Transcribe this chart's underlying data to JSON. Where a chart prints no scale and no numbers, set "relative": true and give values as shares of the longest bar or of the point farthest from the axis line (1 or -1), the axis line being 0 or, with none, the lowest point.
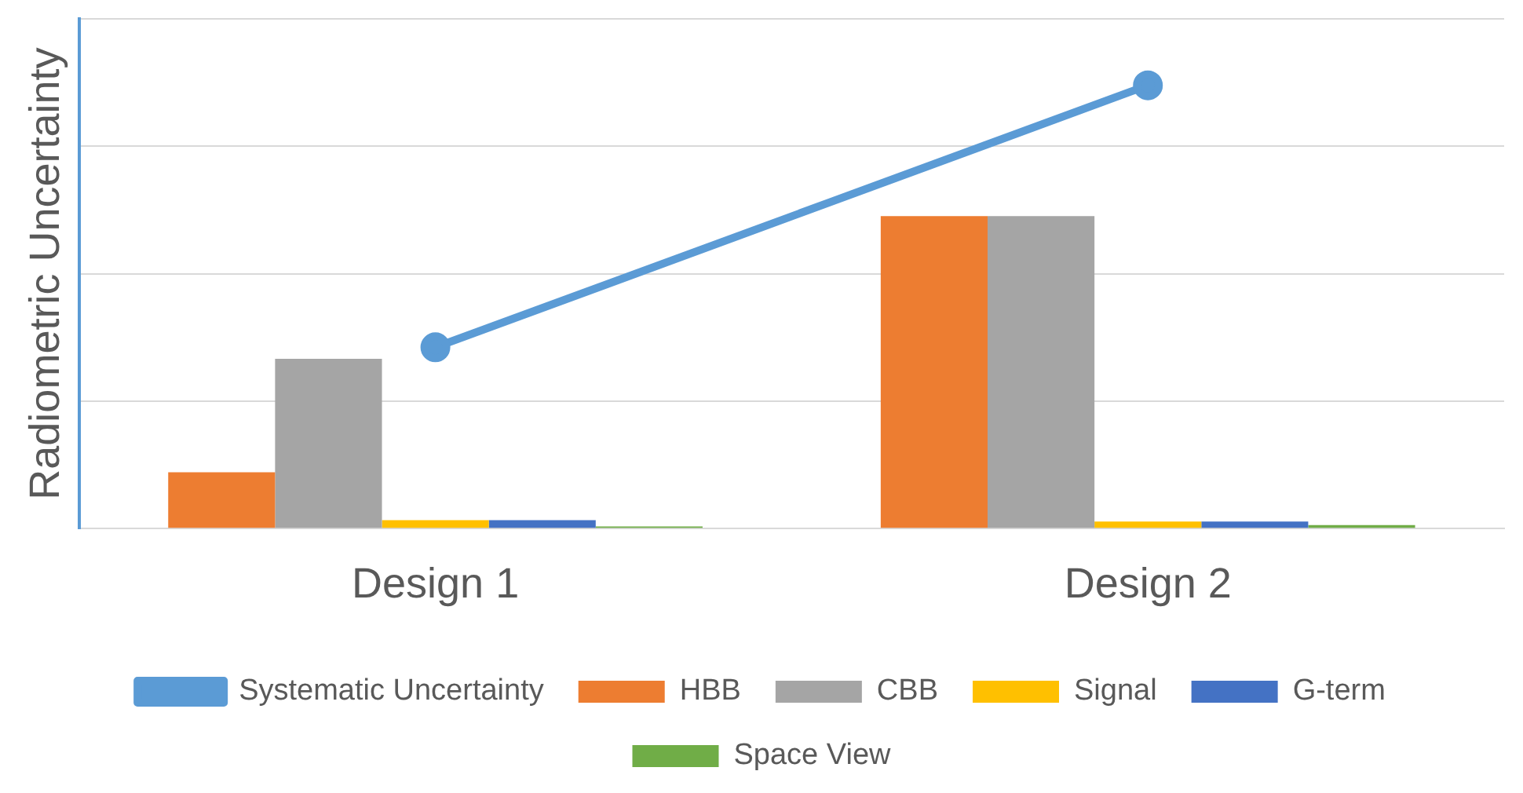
{
  "chart_data": {
    "type": "bar",
    "ylabel": "Radiometric Uncertainty",
    "categories": [
      "Design 1",
      "Design 2"
    ],
    "relative": true,
    "grid": "y",
    "legend": "bottom",
    "series": [
      {
        "name": "HBB",
        "color": "#ed7d31",
        "values": [
          0.127,
          0.705
        ]
      },
      {
        "name": "CBB",
        "color": "#a5a5a5",
        "values": [
          0.383,
          0.705
        ]
      },
      {
        "name": "Signal",
        "color": "#ffc000",
        "values": [
          0.019,
          0.016
        ]
      },
      {
        "name": "G-term",
        "color": "#4472c4",
        "values": [
          0.019,
          0.016
        ]
      },
      {
        "name": "Space View",
        "color": "#70ad47",
        "values": [
          0.005,
          0.008
        ]
      },
      {
        "name": "Systematic Uncertainty",
        "type": "line",
        "color": "#5b9bd5",
        "marker": "circle",
        "values": [
          0.409,
          1
        ]
      }
    ]
  }
}
